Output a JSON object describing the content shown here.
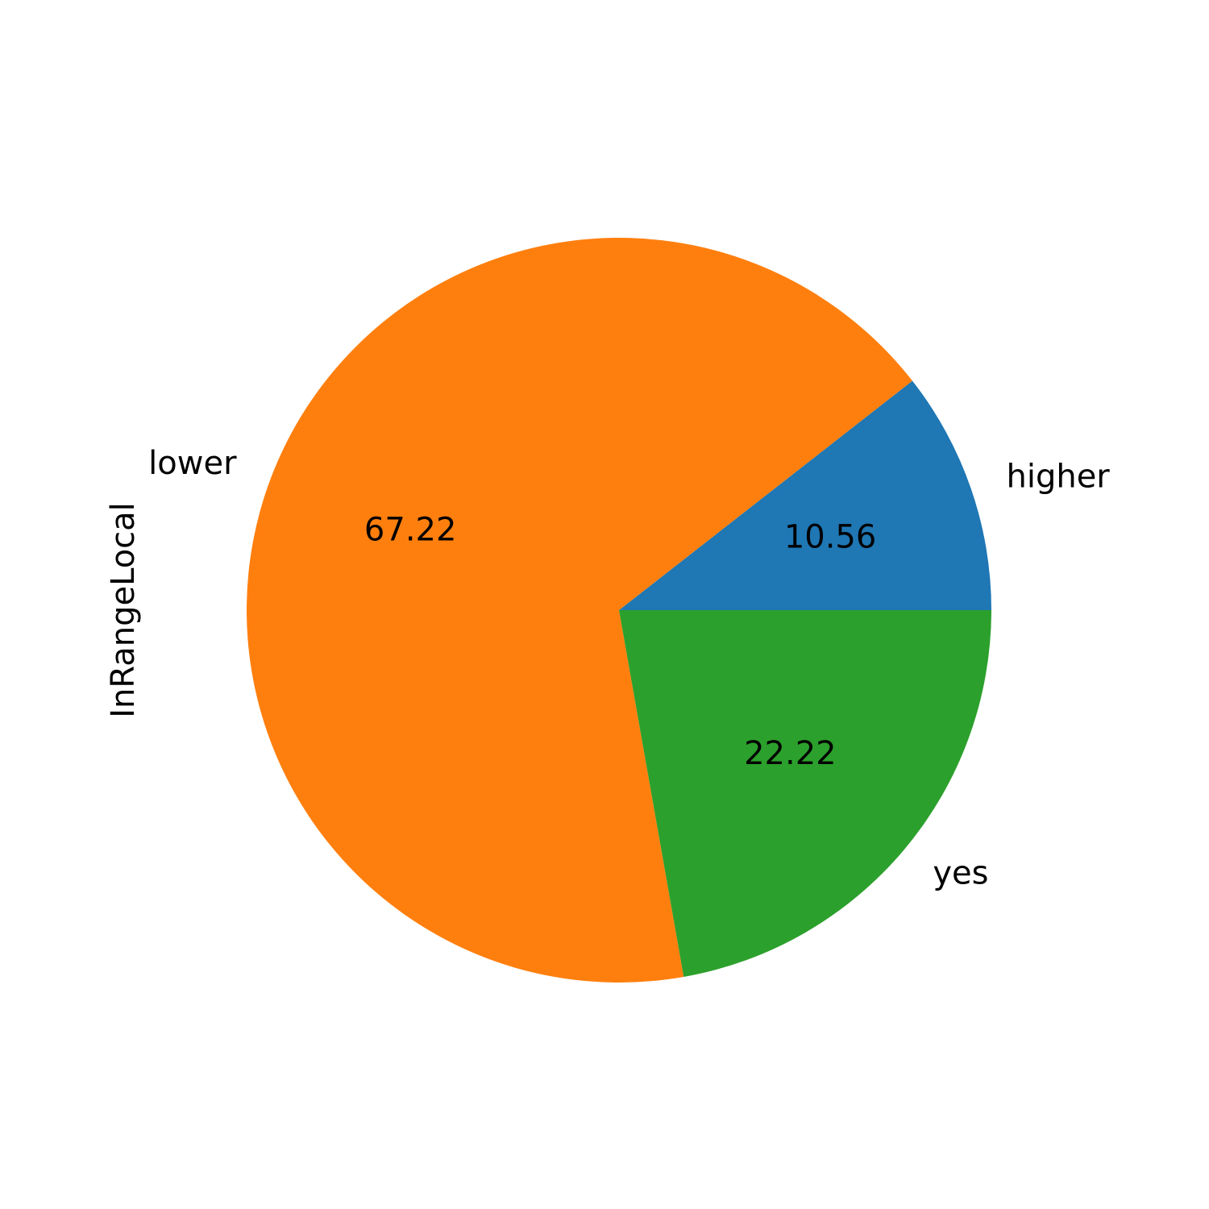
{
  "chart_data": {
    "type": "pie",
    "ylabel": "InRangeLocal",
    "categories": [
      "higher",
      "lower",
      "yes"
    ],
    "values": [
      10.56,
      67.22,
      22.22
    ],
    "value_labels": [
      "10.56",
      "67.22",
      "22.22"
    ],
    "colors": [
      "#1f77b4",
      "#ff7f0e",
      "#2ca02c"
    ],
    "start_angle_deg": 0,
    "direction": "counterclockwise"
  }
}
